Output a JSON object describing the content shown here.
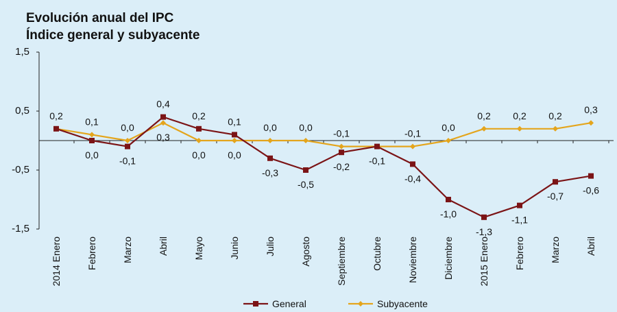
{
  "chart_data": {
    "type": "line",
    "title": "Evolución anual del IPC",
    "subtitle": "Índice general y subyacente",
    "categories": [
      "2014 Enero",
      "Febrero",
      "Marzo",
      "Abril",
      "Mayo",
      "Junio",
      "Julio",
      "Agosto",
      "Septiembre",
      "Octubre",
      "Noviembre",
      "Diciembre",
      "2015 Enero",
      "Febrero",
      "Marzo",
      "Abril"
    ],
    "series": [
      {
        "name": "General",
        "color": "#7b1416",
        "marker": "square",
        "values": [
          0.2,
          0.0,
          -0.1,
          0.4,
          0.2,
          0.1,
          -0.3,
          -0.5,
          -0.2,
          -0.1,
          -0.4,
          -1.0,
          -1.3,
          -1.1,
          -0.7,
          -0.6
        ],
        "labels": [
          "",
          "0,0",
          "-0,1",
          "0,4",
          "0,2",
          "0,1",
          "-0,3",
          "-0,5",
          "-0,2",
          "-0,1",
          "-0,4",
          "-1,0",
          "-1,3",
          "-1,1",
          "-0,7",
          "-0,6"
        ]
      },
      {
        "name": "Subyacente",
        "color": "#e4a51c",
        "marker": "diamond",
        "values": [
          0.2,
          0.1,
          0.0,
          0.3,
          0.0,
          0.0,
          0.0,
          0.0,
          -0.1,
          -0.1,
          -0.1,
          0.0,
          0.2,
          0.2,
          0.2,
          0.3
        ],
        "labels": [
          "0,2",
          "0,1",
          "0,0",
          "0,3",
          "0,0",
          "0,0",
          "0,0",
          "0,0",
          "-0,1",
          "",
          "-0,1",
          "0,0",
          "0,2",
          "0,2",
          "0,2",
          "0,3"
        ]
      }
    ],
    "y_ticks": [
      "1,5",
      "0,5",
      "-0,5",
      "-1,5"
    ],
    "y_tick_values": [
      1.5,
      0.5,
      -0.5,
      -1.5
    ],
    "ylim": [
      -1.5,
      1.5
    ],
    "grid": false,
    "legend_position": "bottom"
  }
}
